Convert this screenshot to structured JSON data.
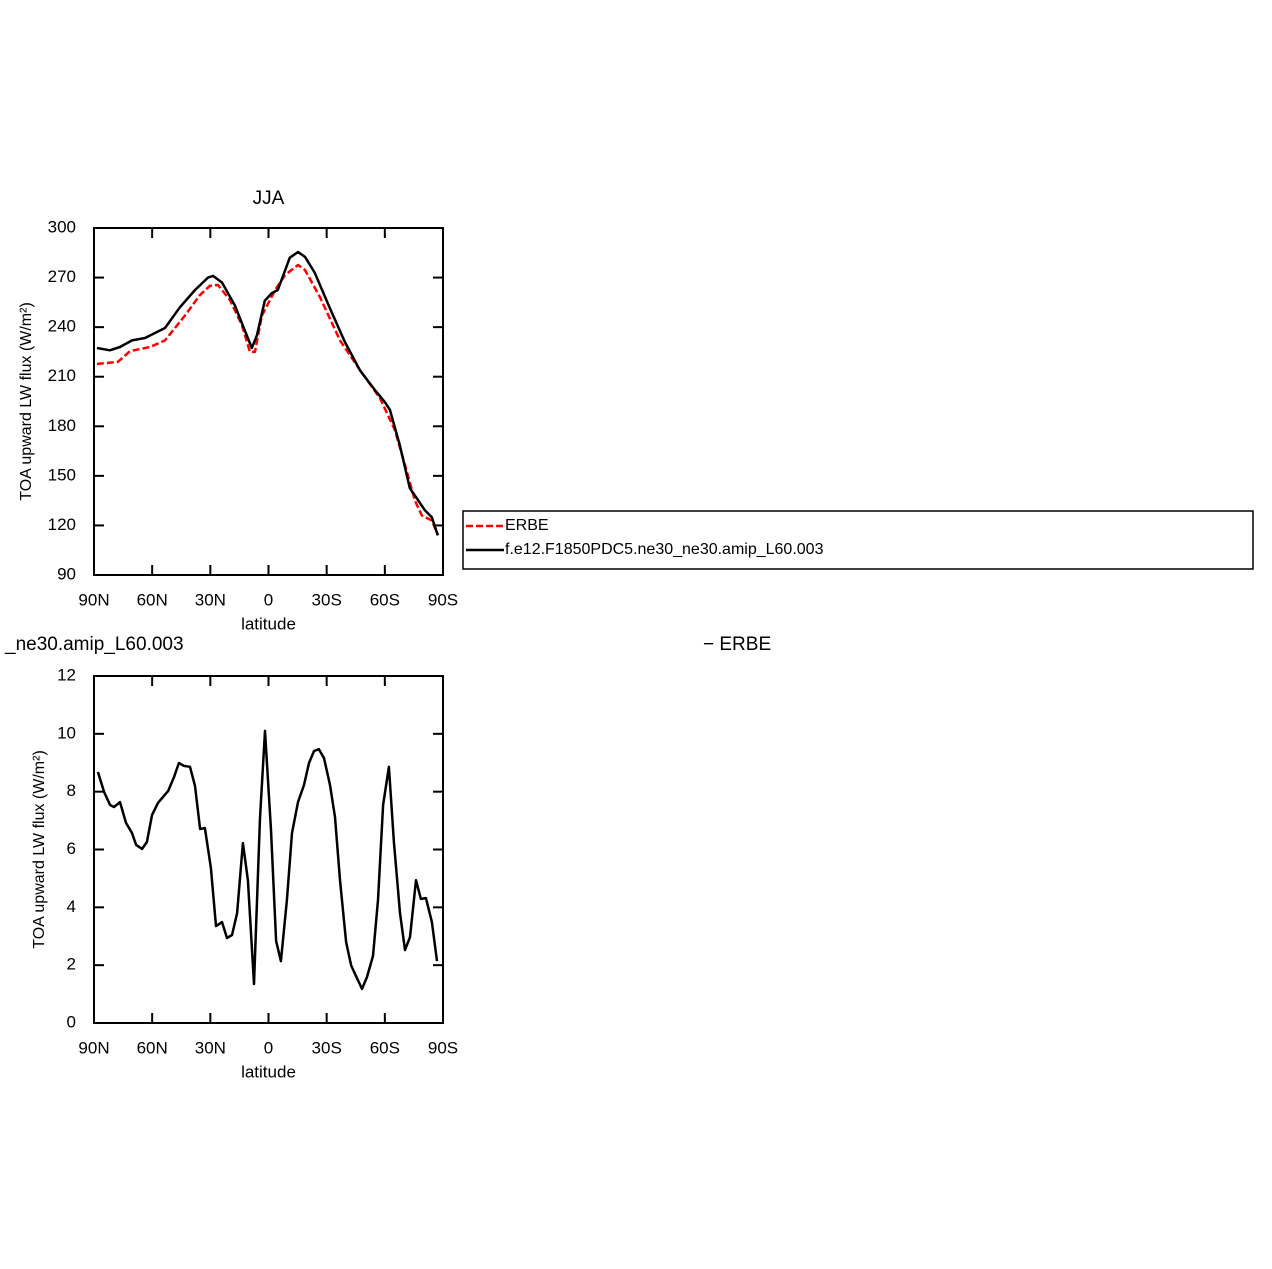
{
  "chart_data": [
    {
      "type": "line",
      "title": "JJA",
      "xlabel": "latitude",
      "ylabel": "TOA upward LW flux (W/m²)",
      "xlim": [
        90,
        -90
      ],
      "ylim": [
        90,
        300
      ],
      "xticks": [
        {
          "value": 90,
          "label": "90N"
        },
        {
          "value": 60,
          "label": "60N"
        },
        {
          "value": 30,
          "label": "30N"
        },
        0,
        {
          "value": -30,
          "label": "30S"
        },
        {
          "value": -60,
          "label": "60S"
        },
        {
          "value": -90,
          "label": "90S"
        }
      ],
      "yticks": [
        90,
        120,
        150,
        180,
        210,
        240,
        270,
        300
      ],
      "legend": "right",
      "series": [
        {
          "name": "ERBE",
          "color": "#ff0000",
          "linestyle": "dashed",
          "x": [
            88.5,
            77.6,
            71.4,
            61.1,
            53.4,
            43.1,
            35.4,
            30.2,
            26.1,
            19.9,
            13.7,
            9.6,
            7.0,
            3.4,
            -3.4,
            -8.5,
            -15.2,
            -18.8,
            -26.6,
            -36.9,
            -47.2,
            -57.5,
            -65.2,
            -70.4,
            -75.5,
            -79.1,
            -84.3,
            -87.4
          ],
          "values": [
            217.7,
            219,
            225.5,
            228,
            232,
            247,
            259.4,
            265,
            265.5,
            256.4,
            241.3,
            225,
            225,
            247,
            262.5,
            271.5,
            277.6,
            274.6,
            258,
            232,
            214,
            197,
            177.7,
            156.5,
            135,
            126,
            123,
            114
          ]
        },
        {
          "name": "f.e12.F1850PDC5.ne30_ne30.amip_L60.003",
          "color": "#000000",
          "linestyle": "solid",
          "x": [
            88.5,
            81.8,
            76.6,
            70.4,
            63.7,
            53.4,
            45.7,
            37.9,
            31.2,
            28.6,
            24,
            17.3,
            12.2,
            8.6,
            6,
            1.9,
            -1.7,
            -4.8,
            -11,
            -15.2,
            -18.8,
            -23.9,
            -31.6,
            -39.4,
            -47.1,
            -54.8,
            -60,
            -62.6,
            -67.7,
            -72.9,
            -80.6,
            -84.2,
            -87.3
          ],
          "values": [
            227.4,
            226,
            228,
            232,
            233.4,
            239.5,
            252,
            262.5,
            270,
            271,
            267,
            253,
            238,
            227.4,
            235,
            256,
            260.6,
            262.5,
            282,
            285.5,
            282.5,
            272.8,
            251.6,
            231,
            214,
            202,
            194.7,
            190,
            168.6,
            142.6,
            129.3,
            125,
            114
          ]
        }
      ]
    },
    {
      "type": "line",
      "left_title": "_ne30.amip_L60.003",
      "right_title": "−  ERBE",
      "xlabel": "latitude",
      "ylabel": "TOA upward LW flux (W/m²)",
      "xlim": [
        90,
        -90
      ],
      "ylim": [
        0,
        12
      ],
      "xticks": [
        {
          "value": 90,
          "label": "90N"
        },
        {
          "value": 60,
          "label": "60N"
        },
        {
          "value": 30,
          "label": "30N"
        },
        0,
        {
          "value": -30,
          "label": "30S"
        },
        {
          "value": -60,
          "label": "60S"
        },
        {
          "value": -90,
          "label": "90S"
        }
      ],
      "yticks": [
        0,
        2,
        4,
        6,
        8,
        10,
        12
      ],
      "series": [
        {
          "color": "#000000",
          "linestyle": "solid",
          "x": [
            88,
            84.8,
            81.7,
            79.7,
            76.6,
            73.5,
            70.4,
            68.3,
            65.2,
            62.7,
            60.1,
            57,
            54.4,
            51.8,
            48.7,
            46.2,
            43.6,
            40.5,
            37.9,
            35.3,
            32.8,
            29.7,
            27.1,
            24,
            21.4,
            18.8,
            16.2,
            13.2,
            10.6,
            7.5,
            4.4,
            1.8,
            -1.3,
            -3.9,
            -6.4,
            -9.5,
            -12.1,
            -15.2,
            -18.3,
            -20.9,
            -23.5,
            -26,
            -28.6,
            -31.7,
            -34.3,
            -36.9,
            -40,
            -42.6,
            -45.1,
            -48.2,
            -50.8,
            -53.9,
            -56.5,
            -59.1,
            -62.1,
            -64.7,
            -67.8,
            -70.4,
            -73,
            -76.1,
            -78.6,
            -81.2,
            -84.3,
            -86.9
          ],
          "values": [
            8.68,
            7.99,
            7.54,
            7.47,
            7.64,
            6.92,
            6.57,
            6.16,
            6.02,
            6.26,
            7.19,
            7.61,
            7.82,
            8.02,
            8.51,
            8.99,
            8.89,
            8.86,
            8.2,
            6.71,
            6.74,
            5.36,
            3.35,
            3.49,
            2.94,
            3.04,
            3.8,
            6.22,
            4.94,
            1.35,
            7.09,
            10.1,
            6.67,
            2.84,
            2.14,
            4.25,
            6.57,
            7.64,
            8.23,
            8.99,
            9.41,
            9.47,
            9.16,
            8.23,
            7.12,
            4.94,
            2.8,
            2.0,
            1.63,
            1.18,
            1.59,
            2.32,
            4.25,
            7.54,
            8.86,
            6.26,
            3.8,
            2.52,
            2.97,
            4.94,
            4.29,
            4.32,
            3.49,
            2.14
          ]
        }
      ]
    }
  ]
}
